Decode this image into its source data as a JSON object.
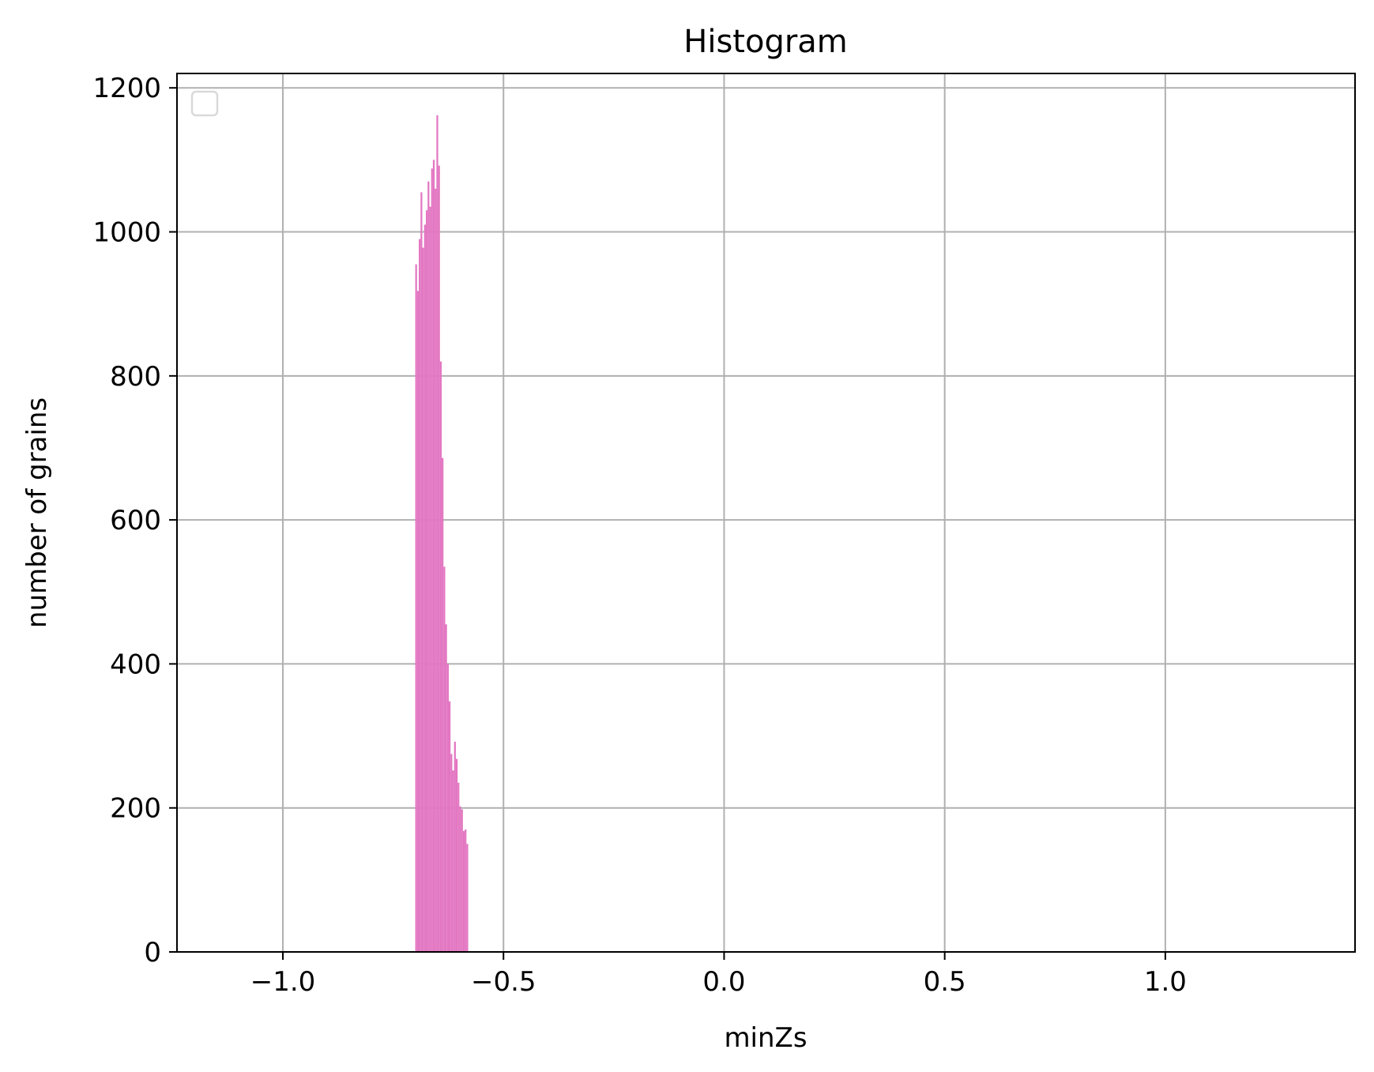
{
  "chart_data": {
    "type": "histogram",
    "title": "Histogram",
    "xlabel": "minZs",
    "ylabel": "number of grains",
    "xlim": [
      -1.24,
      1.43
    ],
    "ylim": [
      0,
      1220
    ],
    "x_ticks": [
      {
        "value": -1.0,
        "label": "−1.0"
      },
      {
        "value": -0.5,
        "label": "−0.5"
      },
      {
        "value": 0.0,
        "label": "0.0"
      },
      {
        "value": 0.5,
        "label": "0.5"
      },
      {
        "value": 1.0,
        "label": "1.0"
      }
    ],
    "y_ticks": [
      {
        "value": 0,
        "label": "0"
      },
      {
        "value": 200,
        "label": "200"
      },
      {
        "value": 400,
        "label": "400"
      },
      {
        "value": 600,
        "label": "600"
      },
      {
        "value": 800,
        "label": "800"
      },
      {
        "value": 1000,
        "label": "1000"
      },
      {
        "value": 1200,
        "label": "1200"
      }
    ],
    "grid": true,
    "legend": {
      "placement": "top-left",
      "entries": []
    },
    "bar_color": "#e377c2",
    "bin_start": -0.7,
    "bin_width": 0.004,
    "counts": [
      955,
      918,
      990,
      1055,
      978,
      1010,
      1030,
      1070,
      1035,
      1088,
      1100,
      1060,
      1162,
      1092,
      820,
      686,
      535,
      455,
      400,
      348,
      275,
      252,
      292,
      268,
      235,
      202,
      198,
      168,
      170,
      150
    ]
  }
}
